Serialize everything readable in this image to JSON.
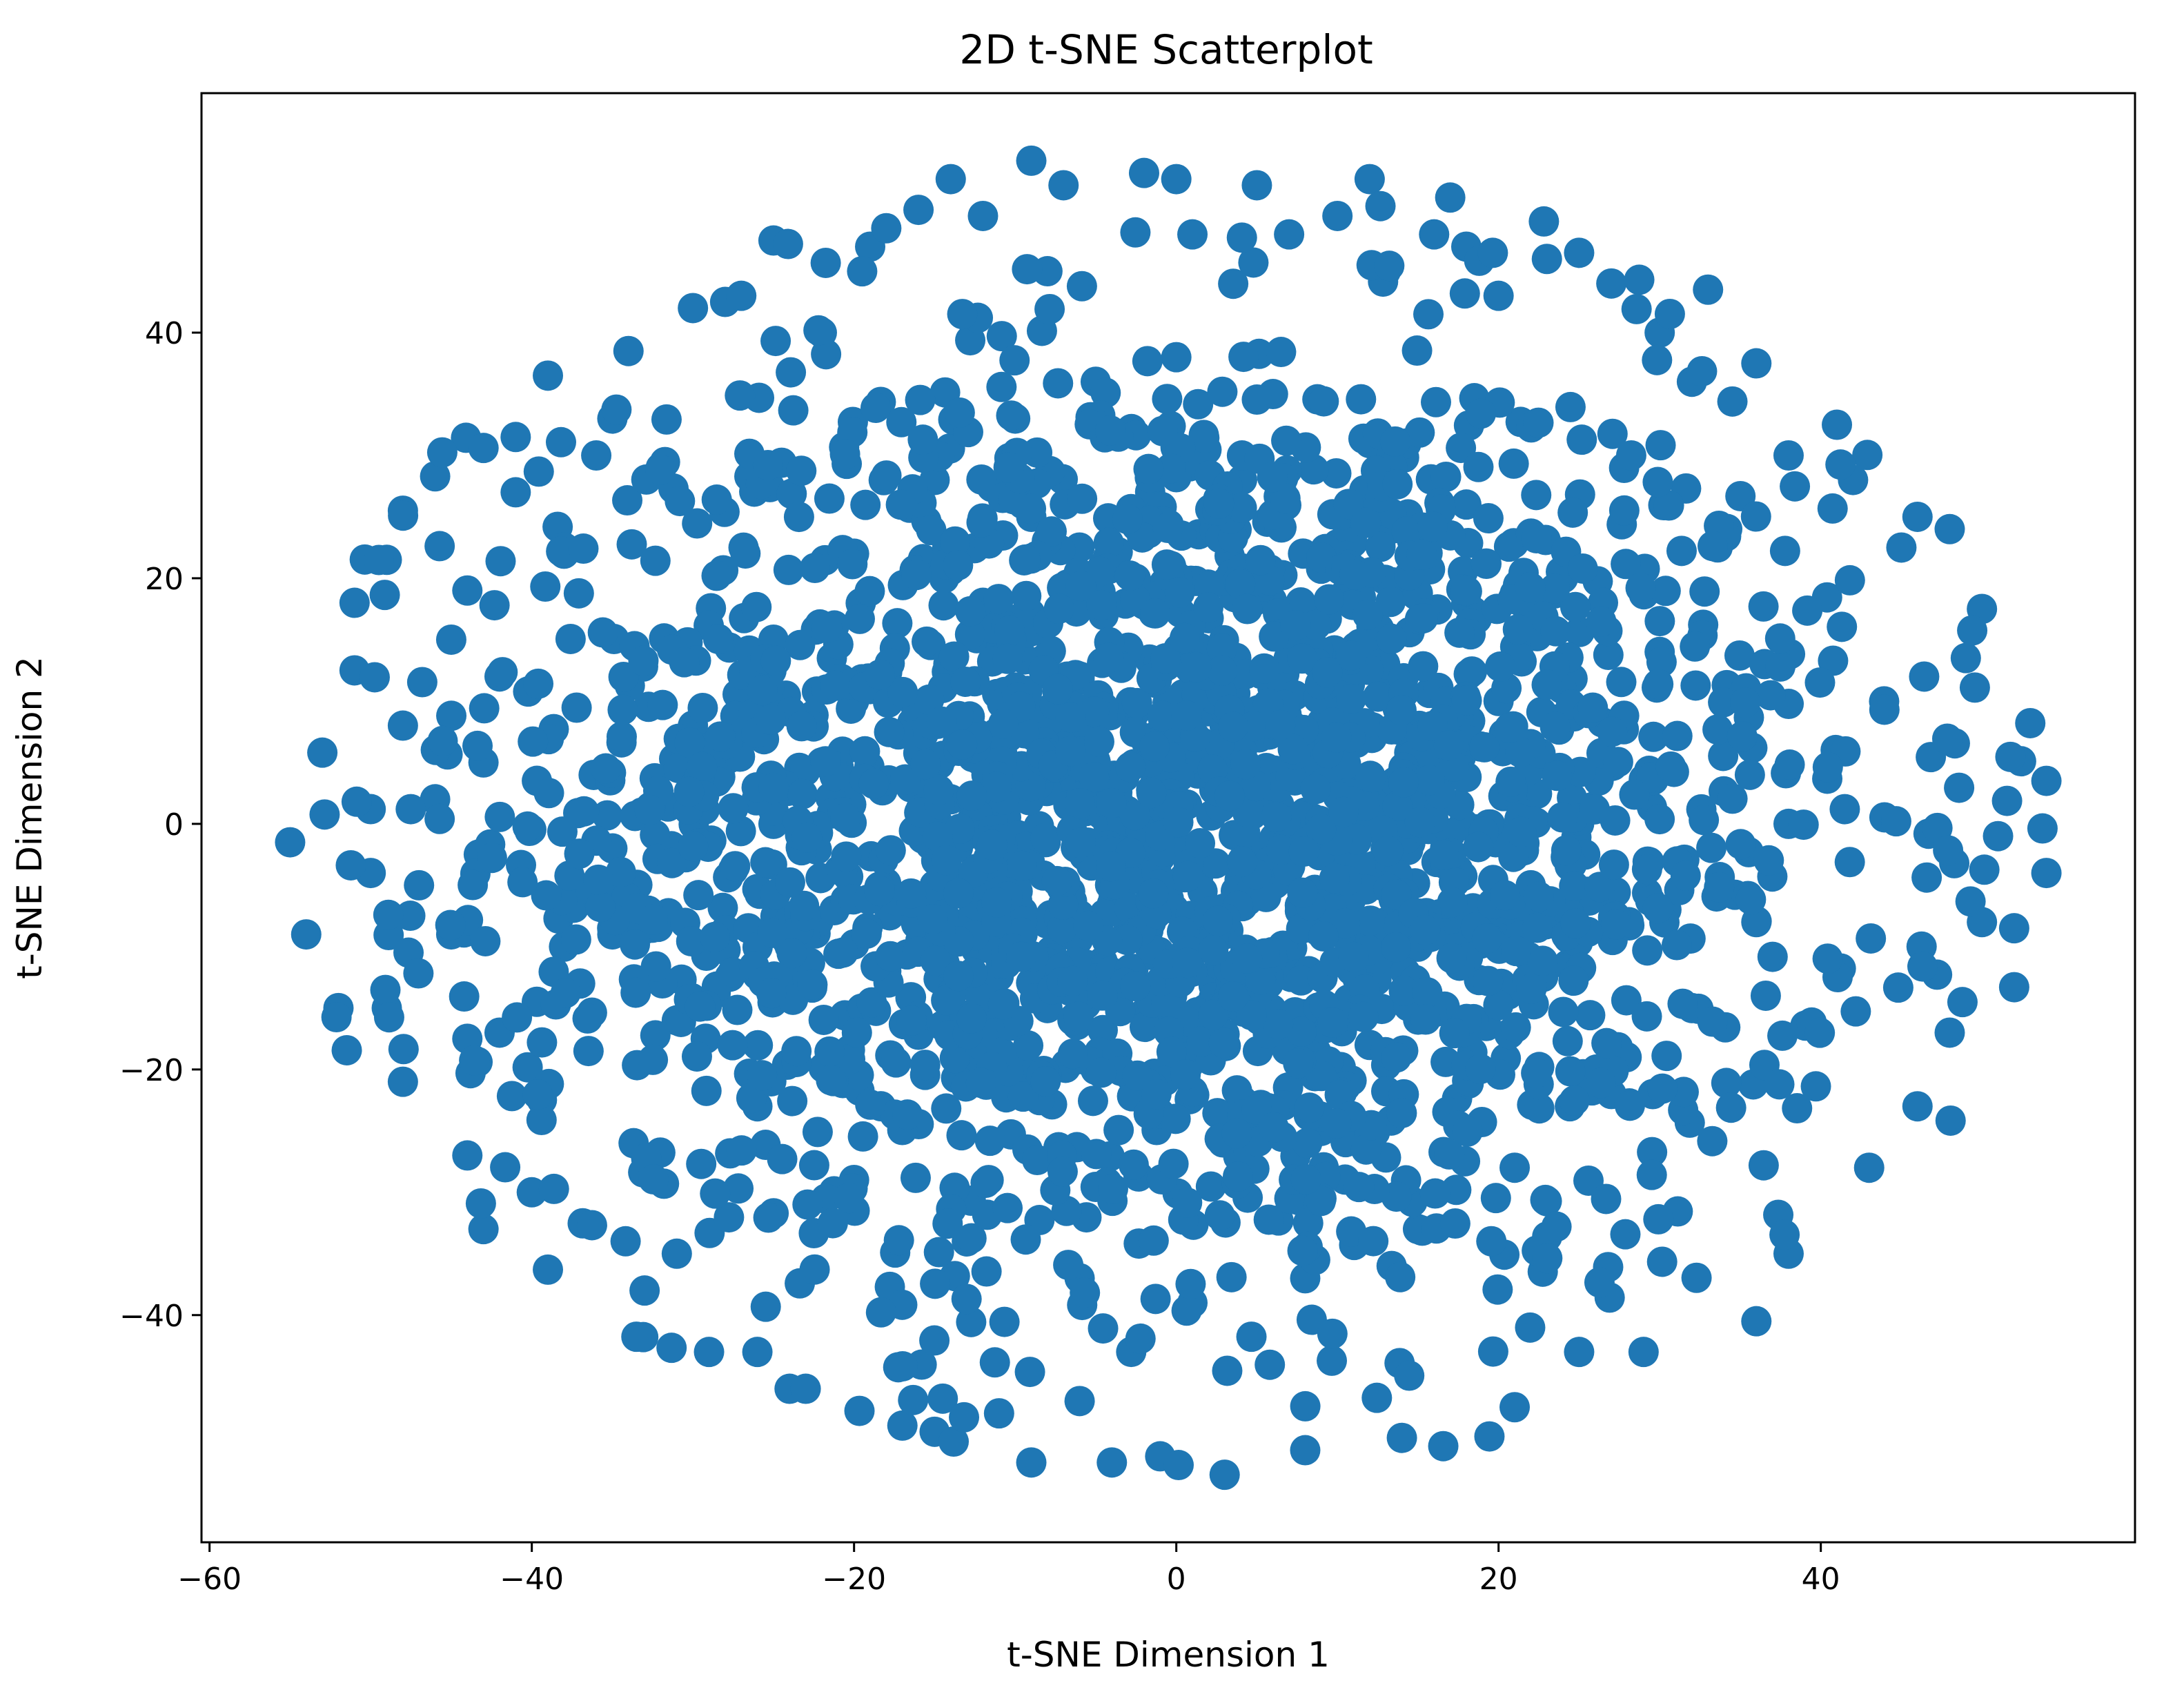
{
  "chart_data": {
    "type": "scatter",
    "title": "2D t-SNE Scatterplot",
    "xlabel": "t-SNE Dimension 1",
    "ylabel": "t-SNE Dimension 2",
    "xlim": [
      -60.5,
      59.5
    ],
    "ylim": [
      -58.5,
      59.5
    ],
    "xticks": [
      -60,
      -40,
      -20,
      0,
      20,
      40
    ],
    "yticks": [
      -40,
      -20,
      0,
      20,
      40
    ],
    "grid": false,
    "legend": "none",
    "series": [
      {
        "color": "#1f77b4",
        "approx_point_count": 2600,
        "distribution": "roughly elliptical cloud centered near (0, 0); x from about -55 to 54, y from about -53 to 54; densest in the center",
        "points": [
          [
            -55,
            -1.5
          ],
          [
            -54,
            -9
          ],
          [
            -53,
            5.8
          ],
          [
            -52,
            -15
          ],
          [
            -51,
            18
          ],
          [
            -51,
            12.5
          ],
          [
            -50,
            1.2
          ],
          [
            -50,
            -4
          ],
          [
            -49,
            21.5
          ],
          [
            -49,
            -15
          ],
          [
            -48,
            25.5
          ],
          [
            -48,
            8
          ],
          [
            -48,
            -21
          ],
          [
            -47,
            -5
          ],
          [
            -46,
            2
          ],
          [
            -46,
            28.3
          ],
          [
            -45,
            15
          ],
          [
            -45,
            -9
          ],
          [
            -44,
            19
          ],
          [
            -44,
            -27
          ],
          [
            -43,
            5
          ],
          [
            -43,
            -33
          ],
          [
            -42,
            12
          ],
          [
            -42,
            -17
          ],
          [
            -41,
            27
          ],
          [
            -41,
            31.5
          ],
          [
            -40,
            -30
          ],
          [
            -39,
            36.5
          ],
          [
            -39,
            -36.3
          ],
          [
            -38,
            22
          ],
          [
            -37,
            -13
          ],
          [
            -36,
            30
          ],
          [
            -35,
            33
          ],
          [
            -34,
            38.5
          ],
          [
            -33,
            -38
          ],
          [
            -32,
            29
          ],
          [
            -31,
            -35
          ],
          [
            -30,
            42
          ],
          [
            -28,
            42.5
          ],
          [
            -27,
            43
          ],
          [
            -29,
            -43
          ],
          [
            -26,
            -43
          ],
          [
            -25,
            47.5
          ],
          [
            -24,
            -46
          ],
          [
            -23,
            -46
          ],
          [
            -22,
            40
          ],
          [
            -19,
            47
          ],
          [
            -18,
            48.5
          ],
          [
            -17,
            -49
          ],
          [
            -16,
            50
          ],
          [
            -15,
            -49.5
          ],
          [
            -14,
            52.5
          ],
          [
            -12,
            49.5
          ],
          [
            -11,
            -48
          ],
          [
            -9,
            54
          ],
          [
            -9,
            -52
          ],
          [
            -8,
            45
          ],
          [
            -7,
            52
          ],
          [
            -6,
            -47
          ],
          [
            -4,
            -52
          ],
          [
            -2,
            53
          ],
          [
            -1,
            -51.5
          ],
          [
            0,
            52.5
          ],
          [
            1,
            48
          ],
          [
            3,
            -53
          ],
          [
            5,
            52
          ],
          [
            7,
            48
          ],
          [
            8,
            -51
          ],
          [
            10,
            49.5
          ],
          [
            12,
            52.5
          ],
          [
            13,
            45
          ],
          [
            14,
            -50
          ],
          [
            16,
            48
          ],
          [
            17,
            51
          ],
          [
            18,
            47
          ],
          [
            20,
            43
          ],
          [
            21,
            -47.5
          ],
          [
            23,
            46
          ],
          [
            25,
            46.5
          ],
          [
            25,
            -43
          ],
          [
            27,
            44
          ],
          [
            29,
            -43
          ],
          [
            30,
            40
          ],
          [
            32,
            36
          ],
          [
            33,
            43.5
          ],
          [
            36,
            37.5
          ],
          [
            36,
            -40.5
          ],
          [
            38,
            30
          ],
          [
            38,
            -35
          ],
          [
            41,
            32.5
          ],
          [
            42,
            28
          ],
          [
            43,
            -28
          ],
          [
            45,
            22.5
          ],
          [
            46,
            25
          ],
          [
            46,
            -23
          ],
          [
            48,
            24
          ],
          [
            48,
            -17
          ],
          [
            49,
            13.5
          ],
          [
            50,
            -8
          ],
          [
            50,
            17.5
          ],
          [
            51,
            -1
          ],
          [
            52,
            -8.5
          ],
          [
            52,
            -13.3
          ],
          [
            53,
            8.2
          ],
          [
            54,
            -4
          ],
          [
            54,
            3.5
          ],
          [
            -44,
            -17.5
          ],
          [
            -38,
            -10
          ],
          [
            -35,
            -2
          ],
          [
            -30,
            8
          ],
          [
            -25,
            15
          ],
          [
            -20,
            22
          ],
          [
            -15,
            28
          ],
          [
            -10,
            33
          ],
          [
            -5,
            36
          ],
          [
            0,
            38
          ],
          [
            6,
            35
          ],
          [
            12,
            31
          ],
          [
            18,
            26
          ],
          [
            24,
            20
          ],
          [
            30,
            14
          ],
          [
            35,
            7
          ],
          [
            38,
            0
          ],
          [
            36,
            -8
          ],
          [
            32,
            -15
          ],
          [
            27,
            -22
          ],
          [
            21,
            -28
          ],
          [
            15,
            -33
          ],
          [
            8,
            -37
          ],
          [
            1,
            -39
          ],
          [
            -6,
            -37
          ],
          [
            -13,
            -34
          ],
          [
            -20,
            -29
          ],
          [
            -26,
            -23
          ],
          [
            -31,
            -16
          ],
          [
            -35,
            -9
          ],
          [
            -10,
            10
          ],
          [
            -5,
            5
          ],
          [
            0,
            0
          ],
          [
            5,
            -5
          ],
          [
            10,
            5
          ],
          [
            -15,
            -5
          ],
          [
            15,
            -10
          ],
          [
            -20,
            10
          ],
          [
            20,
            10
          ],
          [
            -8,
            -15
          ],
          [
            8,
            15
          ],
          [
            0,
            20
          ],
          [
            0,
            -20
          ],
          [
            -25,
            0
          ],
          [
            25,
            0
          ],
          [
            -12,
            18
          ],
          [
            12,
            -18
          ],
          [
            -18,
            -12
          ],
          [
            18,
            18
          ],
          [
            3,
            8
          ],
          [
            -3,
            -8
          ],
          [
            6,
            -12
          ],
          [
            -6,
            12
          ],
          [
            14,
            2
          ],
          [
            -14,
            2
          ],
          [
            9,
            -25
          ],
          [
            -9,
            25
          ],
          [
            22,
            -5
          ],
          [
            -22,
            5
          ]
        ]
      }
    ]
  }
}
